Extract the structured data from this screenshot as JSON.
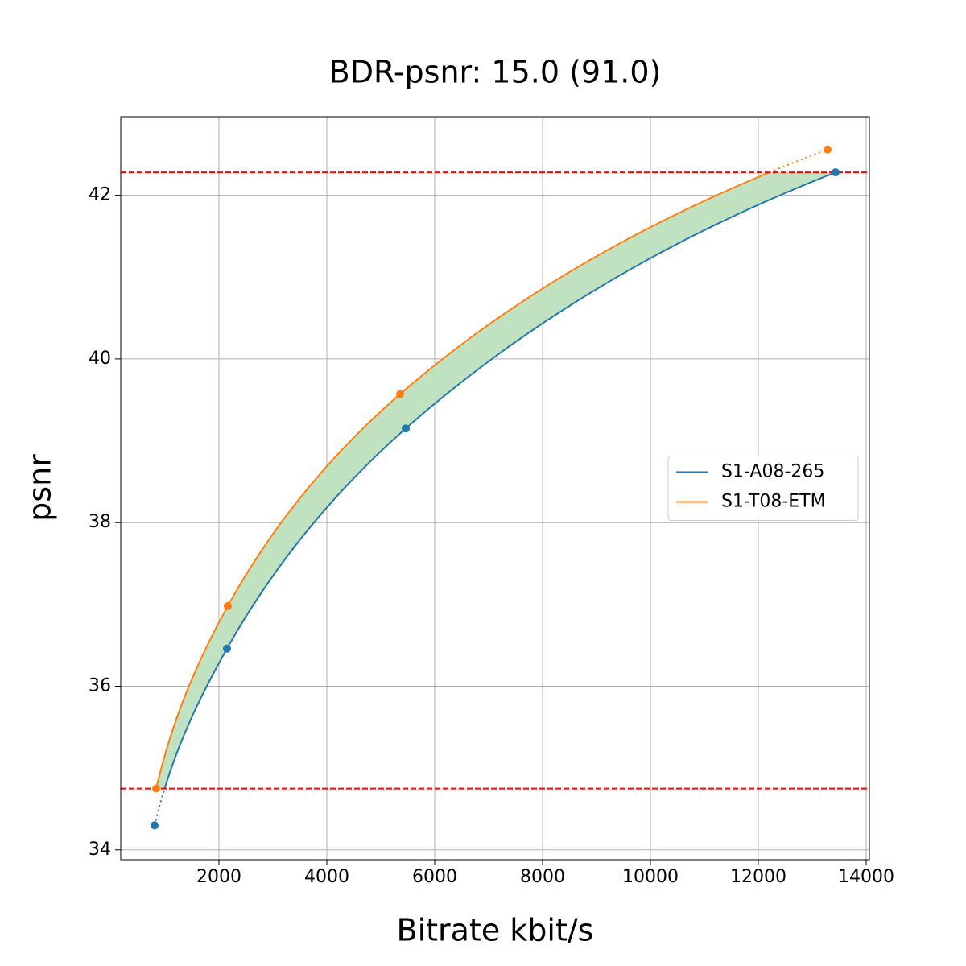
{
  "chart_data": {
    "type": "line",
    "title": "BDR-psnr: 15.0 (91.0)",
    "x_label": "Bitrate kbit/s",
    "y_label": "psnr",
    "series": [
      {
        "name": "S1-A08-265",
        "color": "#1f77b4",
        "x": [
          806,
          2149,
          5463,
          13433
        ],
        "values": [
          34.3,
          36.46,
          39.15,
          42.28
        ]
      },
      {
        "name": "S1-T08-ETM",
        "color": "#ff7f0e",
        "x": [
          836,
          2164,
          5358,
          13284
        ],
        "values": [
          34.75,
          36.98,
          39.57,
          42.56
        ]
      }
    ],
    "hlines": [
      34.75,
      42.28
    ],
    "hline_color": "#ff0000",
    "fill_color": "#c1e2c1",
    "xlim": [
      179,
      14060
    ],
    "ylim": [
      33.88,
      42.96
    ],
    "xticks": [
      2000,
      4000,
      6000,
      8000,
      10000,
      12000,
      14000
    ],
    "yticks": [
      34,
      36,
      38,
      40,
      42
    ],
    "grid": true,
    "legend": "center right"
  }
}
